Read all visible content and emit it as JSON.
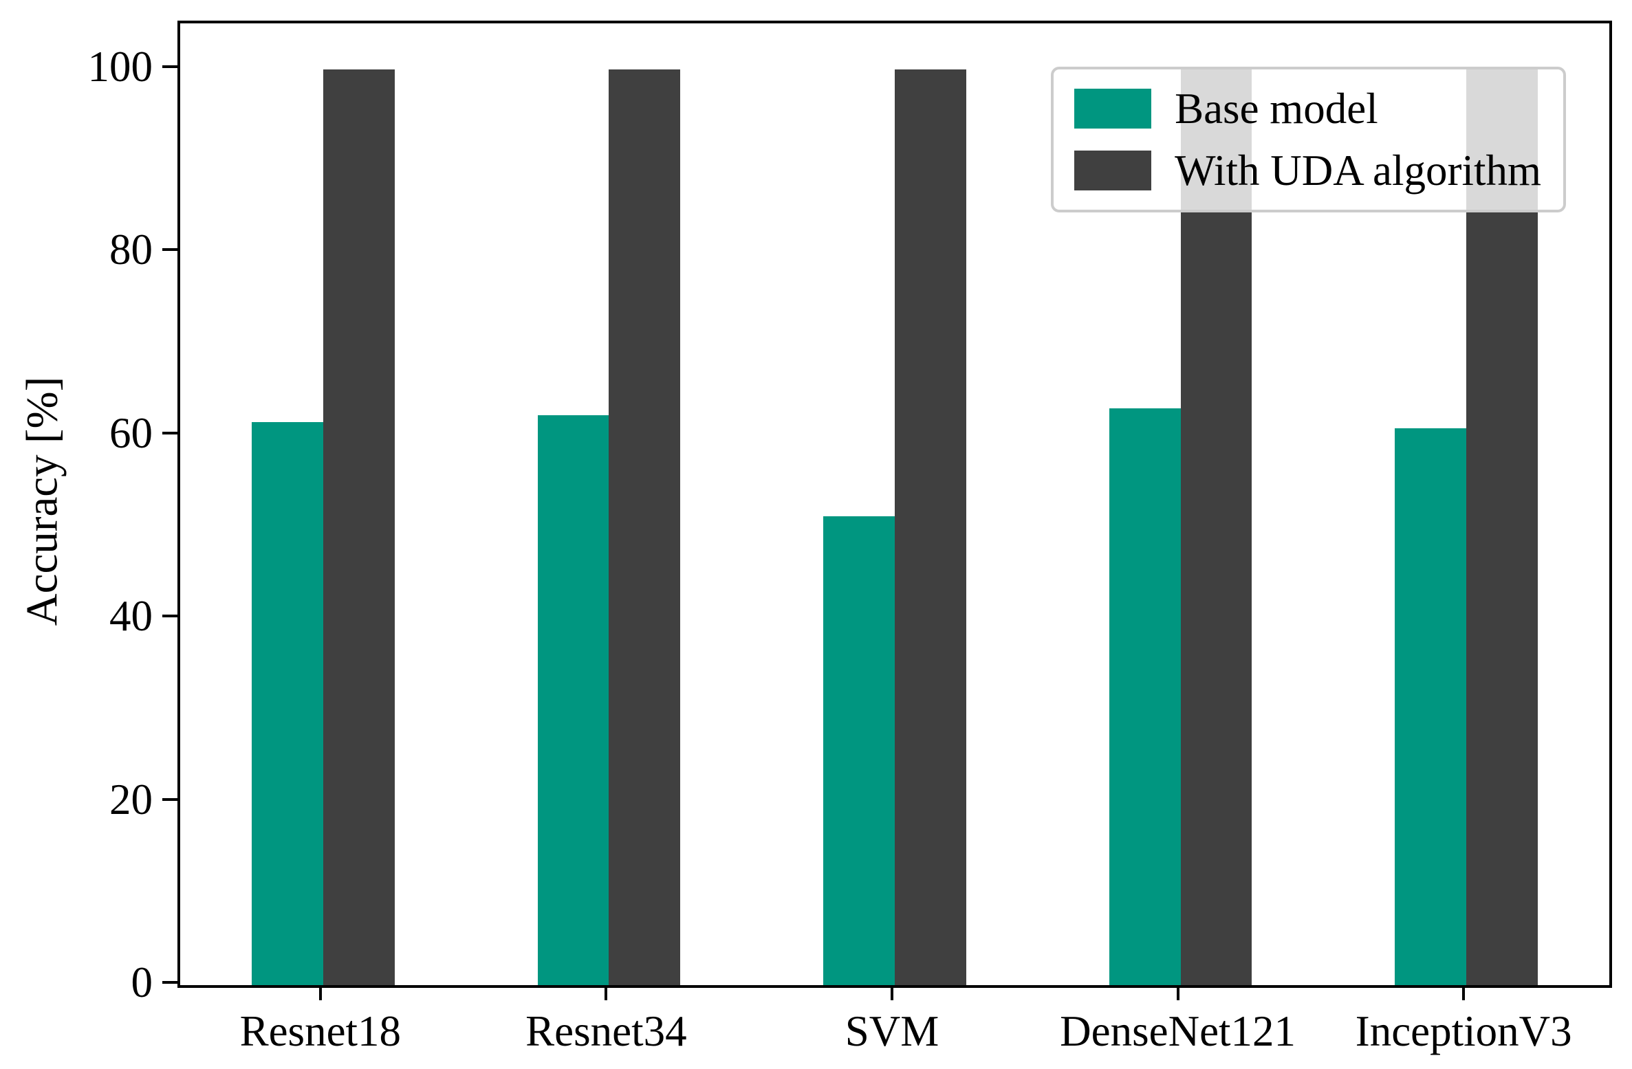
{
  "chart_data": {
    "type": "bar",
    "title": "",
    "xlabel": "",
    "ylabel": "Accuracy [%]",
    "categories": [
      "Resnet18",
      "Resnet34",
      "SVM",
      "DenseNet121",
      "InceptionV3"
    ],
    "series": [
      {
        "name": "Base model",
        "color": "#009680",
        "values": [
          61.5,
          62.2,
          51.2,
          63.0,
          60.8
        ]
      },
      {
        "name": "With UDA algorithm",
        "color": "#404040",
        "values": [
          100,
          100,
          100,
          100,
          100
        ]
      }
    ],
    "ylim": [
      0,
      105
    ],
    "yticks": [
      0,
      20,
      40,
      60,
      80,
      100
    ],
    "bar_width_fraction": 0.25,
    "grid": false,
    "legend_position": "upper right"
  },
  "colors": {
    "axis": "#000000",
    "legend_border": "#cccccc",
    "legend_background": "rgba(255,255,255,0.8)",
    "figure_background": "#ffffff"
  }
}
